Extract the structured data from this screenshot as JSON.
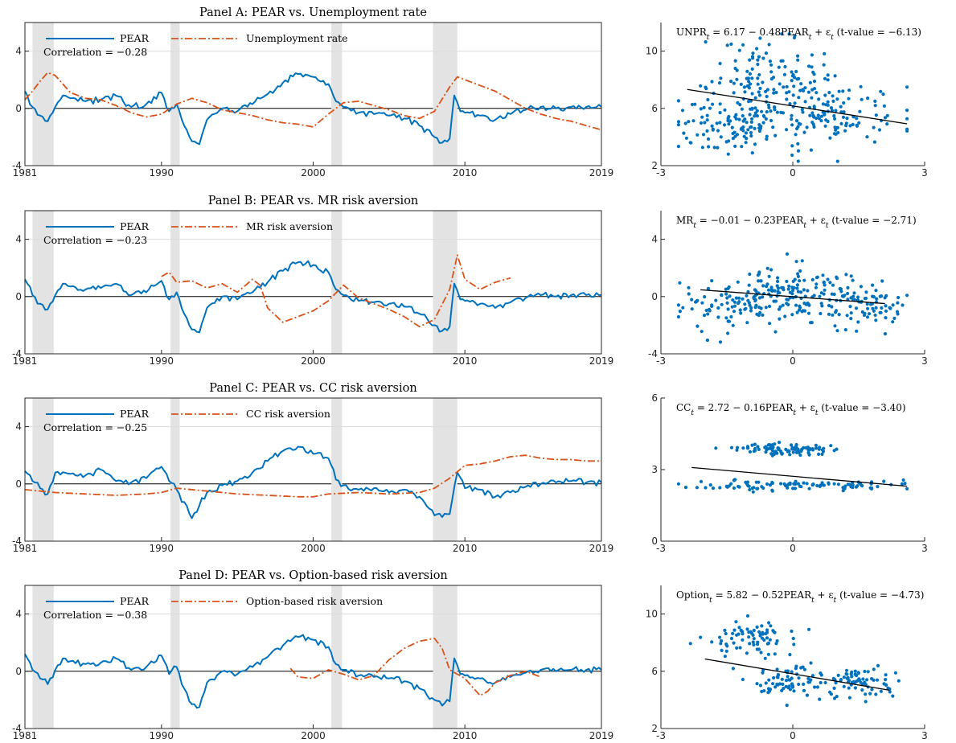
{
  "colors": {
    "pear": "#0072BD",
    "compare": "#D95319",
    "recession": "#e3e3e3",
    "grid": "#dcdcdc",
    "axis": "#262626",
    "scatter": "#0072BD",
    "fit": "#000000"
  },
  "recessions": [
    [
      1981.5,
      1982.9
    ],
    [
      1990.6,
      1991.2
    ],
    [
      2001.2,
      2001.9
    ],
    [
      2007.9,
      2009.5
    ]
  ],
  "legend_pear_label": "PEAR",
  "chart_data": [
    {
      "type": "line",
      "title": "Panel A: PEAR vs. Unemployment rate",
      "correlation_text": "Correlation = −0.28",
      "xlim": [
        1981,
        2019
      ],
      "ylim": [
        -4,
        6
      ],
      "xticks": [
        1981,
        1990,
        2000,
        2010,
        2019
      ],
      "yticks": [
        -4,
        0,
        4
      ],
      "series": [
        {
          "name": "PEAR",
          "x": [
            1981,
            1981.5,
            1982,
            1982.5,
            1983,
            1983.5,
            1984,
            1985,
            1986,
            1987,
            1988,
            1989,
            1990,
            1990.5,
            1991,
            1991.5,
            1992,
            1992.5,
            1993,
            1994,
            1995,
            1996,
            1997,
            1998,
            1999,
            2000,
            2001,
            2001.5,
            2002,
            2003,
            2004,
            2005,
            2006,
            2007,
            2008,
            2008.5,
            2009,
            2009.3,
            2009.7,
            2010,
            2011,
            2012,
            2013,
            2014,
            2015,
            2016,
            2017,
            2018,
            2019
          ],
          "y": [
            1.2,
            0.1,
            -0.5,
            -0.9,
            0.1,
            0.9,
            0.7,
            0.5,
            0.6,
            0.9,
            0.1,
            0.3,
            1.1,
            -0.2,
            0.3,
            -1.2,
            -2.3,
            -2.5,
            -0.8,
            0.0,
            -0.2,
            0.3,
            1.0,
            1.8,
            2.4,
            2.2,
            1.7,
            0.5,
            0.1,
            -0.3,
            -0.4,
            -0.5,
            -0.7,
            -1.2,
            -2.0,
            -2.4,
            -2.1,
            0.9,
            -0.2,
            -0.3,
            -0.5,
            -0.8,
            -0.4,
            -0.1,
            0.1,
            0.0,
            0.1,
            0.1,
            0.1
          ]
        },
        {
          "name": "Unemployment rate",
          "x": [
            1981,
            1981.5,
            1982,
            1982.5,
            1983,
            1984,
            1985,
            1986,
            1987,
            1988,
            1989,
            1990,
            1991,
            1992,
            1993,
            1994,
            1995,
            1996,
            1997,
            1998,
            1999,
            2000,
            2001,
            2002,
            2003,
            2004,
            2005,
            2006,
            2007,
            2008,
            2009,
            2009.5,
            2010,
            2011,
            2012,
            2013,
            2014,
            2015,
            2016,
            2017,
            2018,
            2019
          ],
          "y": [
            0.6,
            1.2,
            1.9,
            2.5,
            2.3,
            1.1,
            0.7,
            0.6,
            0.2,
            -0.3,
            -0.6,
            -0.4,
            0.3,
            0.7,
            0.4,
            -0.1,
            -0.3,
            -0.5,
            -0.8,
            -1.0,
            -1.1,
            -1.3,
            -0.4,
            0.4,
            0.5,
            0.2,
            -0.1,
            -0.5,
            -0.7,
            -0.2,
            1.5,
            2.2,
            2.0,
            1.6,
            1.2,
            0.6,
            0.0,
            -0.4,
            -0.7,
            -0.9,
            -1.2,
            -1.5
          ]
        }
      ],
      "scatter": {
        "equation_text": "UNPR_t = 6.17 − 0.48PEAR_t + ε_t (t-value = −6.13)",
        "xlim": [
          -3,
          3
        ],
        "ylim": [
          2,
          12
        ],
        "xticks": [
          -3,
          0,
          3
        ],
        "yticks": [
          2,
          6,
          10
        ],
        "fit": {
          "intercept": 6.17,
          "slope": -0.48,
          "x_range": [
            -2.4,
            2.6
          ]
        },
        "points": {
          "seed": 11,
          "n": 360,
          "clusters": [
            [
              -0.2,
              1.0,
              6.0,
              1.6
            ],
            [
              -1.5,
              0.7,
              5.0,
              1.0
            ],
            [
              1.0,
              0.8,
              5.5,
              1.0
            ],
            [
              -0.4,
              0.7,
              8.5,
              1.3
            ]
          ]
        }
      }
    },
    {
      "type": "line",
      "title": "Panel B: PEAR vs. MR risk aversion",
      "correlation_text": "Correlation = −0.23",
      "xlim": [
        1981,
        2019
      ],
      "ylim": [
        -4,
        6
      ],
      "xticks": [
        1981,
        1990,
        2000,
        2010,
        2019
      ],
      "yticks": [
        -4,
        0,
        4
      ],
      "series": [
        {
          "name": "PEAR",
          "x": [
            1981,
            1981.5,
            1982,
            1982.5,
            1983,
            1983.5,
            1984,
            1985,
            1986,
            1987,
            1988,
            1989,
            1990,
            1990.5,
            1991,
            1991.5,
            1992,
            1992.5,
            1993,
            1994,
            1995,
            1996,
            1997,
            1998,
            1999,
            2000,
            2001,
            2001.5,
            2002,
            2003,
            2004,
            2005,
            2006,
            2007,
            2008,
            2008.5,
            2009,
            2009.3,
            2009.7,
            2010,
            2011,
            2012,
            2013,
            2014,
            2015,
            2016,
            2017,
            2018,
            2019
          ],
          "y": [
            1.2,
            0.1,
            -0.5,
            -0.9,
            0.1,
            0.9,
            0.7,
            0.5,
            0.6,
            0.9,
            0.1,
            0.3,
            1.1,
            -0.2,
            0.3,
            -1.2,
            -2.3,
            -2.5,
            -0.8,
            0.0,
            -0.2,
            0.3,
            1.0,
            1.8,
            2.4,
            2.2,
            1.7,
            0.5,
            0.1,
            -0.3,
            -0.4,
            -0.5,
            -0.7,
            -1.2,
            -2.0,
            -2.4,
            -2.1,
            0.9,
            -0.2,
            -0.3,
            -0.5,
            -0.8,
            -0.4,
            -0.1,
            0.1,
            0.0,
            0.1,
            0.1,
            0.1
          ]
        },
        {
          "name": "MR risk aversion",
          "x": [
            1990,
            1990.5,
            1991,
            1992,
            1993,
            1994,
            1995,
            1996,
            1996.5,
            1997,
            1998,
            1999,
            2000,
            2001,
            2002,
            2003,
            2004,
            2005,
            2006,
            2007,
            2008,
            2009,
            2009.5,
            2010,
            2011,
            2012,
            2013
          ],
          "y": [
            1.4,
            1.7,
            1.0,
            1.1,
            0.6,
            0.9,
            0.3,
            1.2,
            0.8,
            -0.8,
            -1.8,
            -1.4,
            -1.0,
            -0.3,
            0.8,
            -0.1,
            -0.5,
            -0.9,
            -1.4,
            -2.1,
            -1.6,
            0.5,
            2.9,
            1.2,
            0.5,
            1.0,
            1.3
          ]
        }
      ],
      "scatter": {
        "equation_text": "MR_t = −0.01 − 0.23PEAR_t + ε_t (t-value = −2.71)",
        "xlim": [
          -3,
          3
        ],
        "ylim": [
          -4,
          6
        ],
        "xticks": [
          -3,
          0,
          3
        ],
        "yticks": [
          -4,
          0,
          4
        ],
        "fit": {
          "intercept": -0.01,
          "slope": -0.23,
          "x_range": [
            -2.1,
            2.1
          ]
        },
        "points": {
          "seed": 23,
          "n": 300,
          "clusters": [
            [
              -0.1,
              0.6,
              0.2,
              0.9
            ],
            [
              -1.3,
              0.6,
              -0.5,
              1.0
            ],
            [
              1.4,
              0.6,
              -0.4,
              0.8
            ]
          ]
        }
      }
    },
    {
      "type": "line",
      "title": "Panel C: PEAR vs. CC risk aversion",
      "correlation_text": "Correlation = −0.25",
      "xlim": [
        1981,
        2019
      ],
      "ylim": [
        -4,
        6
      ],
      "xticks": [
        1981,
        1990,
        2000,
        2010,
        2019
      ],
      "yticks": [
        -4,
        0,
        4
      ],
      "series": [
        {
          "name": "PEAR",
          "x": [
            1981,
            1981.5,
            1982,
            1982.5,
            1983,
            1984,
            1985,
            1986,
            1987,
            1988,
            1989,
            1990,
            1990.5,
            1991,
            1992,
            1993,
            1994,
            1995,
            1996,
            1997,
            1998,
            1999,
            2000,
            2001,
            2001.5,
            2002,
            2003,
            2004,
            2005,
            2006,
            2007,
            2008,
            2009,
            2009.5,
            2010,
            2011,
            2012,
            2013,
            2014,
            2015,
            2016,
            2017,
            2018,
            2019
          ],
          "y": [
            0.9,
            0.2,
            -0.3,
            -0.7,
            0.8,
            0.7,
            0.6,
            1.0,
            0.2,
            0.1,
            0.4,
            1.2,
            0.2,
            -0.4,
            -2.4,
            -0.6,
            -0.1,
            0.2,
            0.8,
            1.6,
            2.3,
            2.6,
            2.1,
            1.8,
            0.3,
            -0.1,
            -0.4,
            -0.3,
            -0.6,
            -0.4,
            -0.9,
            -2.2,
            -2.1,
            0.8,
            -0.3,
            -0.4,
            -0.9,
            -0.6,
            -0.2,
            0.0,
            0.1,
            0.2,
            0.1,
            0.1
          ]
        },
        {
          "name": "CC risk aversion",
          "x": [
            1981,
            1983,
            1985,
            1987,
            1989,
            1990,
            1991,
            1993,
            1995,
            1997,
            1999,
            2000,
            2001,
            2003,
            2005,
            2007,
            2008,
            2009,
            2010,
            2011,
            2012,
            2013,
            2014,
            2015,
            2016,
            2017,
            2018,
            2019
          ],
          "y": [
            -0.4,
            -0.6,
            -0.7,
            -0.8,
            -0.7,
            -0.6,
            -0.3,
            -0.5,
            -0.7,
            -0.8,
            -0.9,
            -0.9,
            -0.7,
            -0.6,
            -0.7,
            -0.6,
            -0.3,
            0.4,
            1.3,
            1.4,
            1.6,
            1.9,
            2.0,
            1.8,
            1.7,
            1.7,
            1.6,
            1.6
          ]
        }
      ],
      "scatter": {
        "equation_text": "CC_t = 2.72 − 0.16PEAR_t + ε_t (t-value = −3.40)",
        "xlim": [
          -3,
          3
        ],
        "ylim": [
          0,
          6
        ],
        "xticks": [
          -3,
          0,
          3
        ],
        "yticks": [
          0,
          3,
          6
        ],
        "fit": {
          "intercept": 2.72,
          "slope": -0.16,
          "x_range": [
            -2.3,
            2.6
          ]
        },
        "points": {
          "seed": 37,
          "n": 200,
          "clusters": [
            [
              0.0,
              1.2,
              2.35,
              0.12
            ],
            [
              -0.2,
              0.5,
              3.85,
              0.12
            ]
          ]
        }
      }
    },
    {
      "type": "line",
      "title": "Panel D: PEAR vs. Option-based risk aversion",
      "correlation_text": "Correlation = −0.38",
      "xlim": [
        1981,
        2019
      ],
      "ylim": [
        -4,
        6
      ],
      "xticks": [
        1981,
        1990,
        2000,
        2010,
        2019
      ],
      "yticks": [
        -4,
        0,
        4
      ],
      "series": [
        {
          "name": "PEAR",
          "x": [
            1981,
            1981.5,
            1982,
            1982.5,
            1983,
            1983.5,
            1984,
            1985,
            1986,
            1987,
            1988,
            1989,
            1990,
            1990.5,
            1991,
            1991.5,
            1992,
            1992.5,
            1993,
            1994,
            1995,
            1996,
            1997,
            1998,
            1999,
            2000,
            2001,
            2001.5,
            2002,
            2003,
            2004,
            2005,
            2006,
            2007,
            2008,
            2008.5,
            2009,
            2009.3,
            2009.7,
            2010,
            2011,
            2012,
            2013,
            2014,
            2015,
            2016,
            2017,
            2018,
            2019
          ],
          "y": [
            1.2,
            0.1,
            -0.5,
            -0.9,
            0.1,
            0.9,
            0.7,
            0.5,
            0.6,
            0.9,
            0.1,
            0.3,
            1.1,
            -0.2,
            0.3,
            -1.2,
            -2.3,
            -2.5,
            -0.8,
            0.0,
            -0.2,
            0.3,
            1.0,
            1.8,
            2.4,
            2.2,
            1.7,
            0.5,
            0.1,
            -0.3,
            -0.4,
            -0.5,
            -0.7,
            -1.2,
            -2.0,
            -2.4,
            -2.1,
            0.9,
            -0.2,
            -0.3,
            -0.5,
            -0.8,
            -0.4,
            -0.1,
            0.1,
            0.0,
            0.1,
            0.1,
            0.1
          ]
        },
        {
          "name": "Option-based risk aversion",
          "x": [
            1998.5,
            1999,
            2000,
            2001,
            2002,
            2003,
            2004,
            2005,
            2006,
            2007,
            2008,
            2008.5,
            2009,
            2010,
            2011,
            2011.5,
            2012,
            2013,
            2014,
            2015
          ],
          "y": [
            0.2,
            -0.4,
            -0.5,
            0.1,
            -0.2,
            -0.6,
            -0.3,
            0.8,
            1.6,
            2.1,
            2.3,
            1.6,
            0.1,
            -0.5,
            -1.7,
            -1.4,
            -0.8,
            -0.3,
            0.0,
            -0.4
          ]
        }
      ],
      "scatter": {
        "equation_text": "Option_t = 5.82 − 0.52PEAR_t + ε_t (t-value = −4.73)",
        "xlim": [
          -3,
          3
        ],
        "ylim": [
          2,
          12
        ],
        "xticks": [
          -3,
          0,
          3
        ],
        "yticks": [
          2,
          6,
          10
        ],
        "fit": {
          "intercept": 5.82,
          "slope": -0.52,
          "x_range": [
            -2.0,
            2.2
          ]
        },
        "points": {
          "seed": 53,
          "n": 220,
          "clusters": [
            [
              -0.1,
              0.5,
              5.2,
              0.8
            ],
            [
              -1.0,
              0.5,
              8.3,
              0.7
            ],
            [
              1.6,
              0.5,
              5.3,
              0.5
            ]
          ]
        }
      }
    }
  ]
}
